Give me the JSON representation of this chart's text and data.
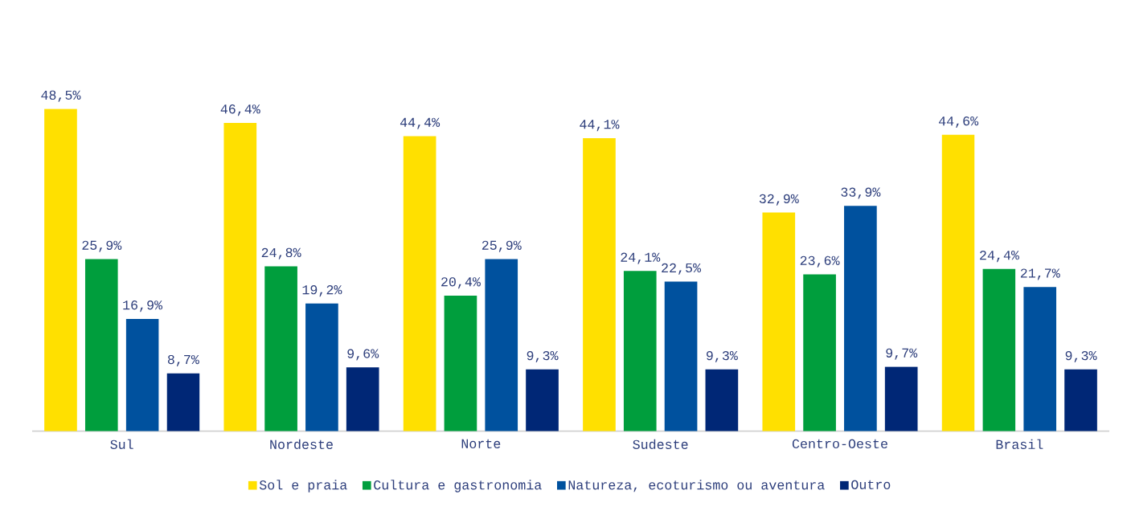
{
  "chart_data": {
    "type": "bar",
    "categories": [
      "Sul",
      "Nordeste",
      "Norte",
      "Sudeste",
      "Centro-Oeste",
      "Brasil"
    ],
    "series": [
      {
        "name": "Sol e praia",
        "color": "#ffe000",
        "values": [
          48.5,
          46.4,
          44.4,
          44.1,
          32.9,
          44.6
        ],
        "value_labels": [
          "48,5%",
          "46,4%",
          "44,4%",
          "44,1%",
          "32,9%",
          "44,6%"
        ]
      },
      {
        "name": "Cultura e gastronomia",
        "color": "#009e3d",
        "values": [
          25.9,
          24.8,
          20.4,
          24.1,
          23.6,
          24.4
        ],
        "value_labels": [
          "25,9%",
          "24,8%",
          "20,4%",
          "24,1%",
          "23,6%",
          "24,4%"
        ]
      },
      {
        "name": "Natureza, ecoturismo ou aventura",
        "color": "#00519e",
        "values": [
          16.9,
          19.2,
          25.9,
          22.5,
          33.9,
          21.7
        ],
        "value_labels": [
          "16,9%",
          "19,2%",
          "25,9%",
          "22,5%",
          "33,9%",
          "21,7%"
        ]
      },
      {
        "name": "Outro",
        "color": "#002776",
        "values": [
          8.7,
          9.6,
          9.3,
          9.3,
          9.7,
          9.3
        ],
        "value_labels": [
          "8,7%",
          "9,6%",
          "9,3%",
          "9,3%",
          "9,7%",
          "9,3%"
        ]
      }
    ],
    "legend": "bottom"
  }
}
